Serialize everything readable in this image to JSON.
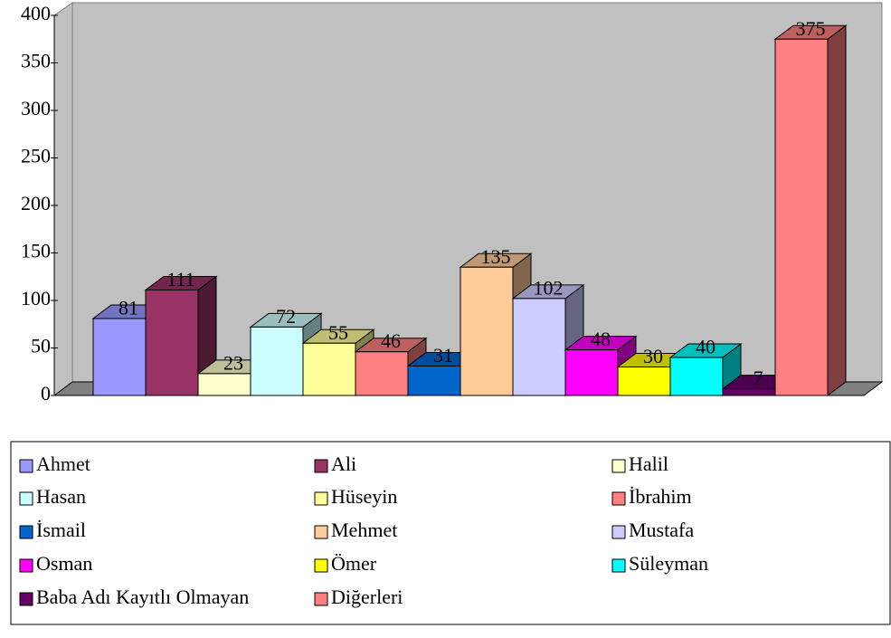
{
  "chart_data": {
    "type": "bar3d",
    "categories": [
      "Ahmet",
      "Ali",
      "Halil",
      "Hasan",
      "Hüseyin",
      "İbrahim",
      "İsmail",
      "Mehmet",
      "Mustafa",
      "Osman",
      "Ömer",
      "Süleyman",
      "Baba Adı Kayıtlı Olmayan",
      "Diğerleri"
    ],
    "values": [
      81,
      111,
      23,
      72,
      55,
      46,
      31,
      135,
      102,
      48,
      30,
      40,
      7,
      375
    ],
    "colors": [
      "#9999ff",
      "#993366",
      "#ffffcc",
      "#ccffff",
      "#ffff99",
      "#ff8080",
      "#0066cc",
      "#ffcc99",
      "#ccccff",
      "#ff00ff",
      "#ffff00",
      "#00ffff",
      "#660066",
      "#ff8080"
    ],
    "ylim": [
      0,
      400
    ],
    "yticks": [
      0,
      50,
      100,
      150,
      200,
      250,
      300,
      350,
      400
    ],
    "legend": "bottom"
  }
}
